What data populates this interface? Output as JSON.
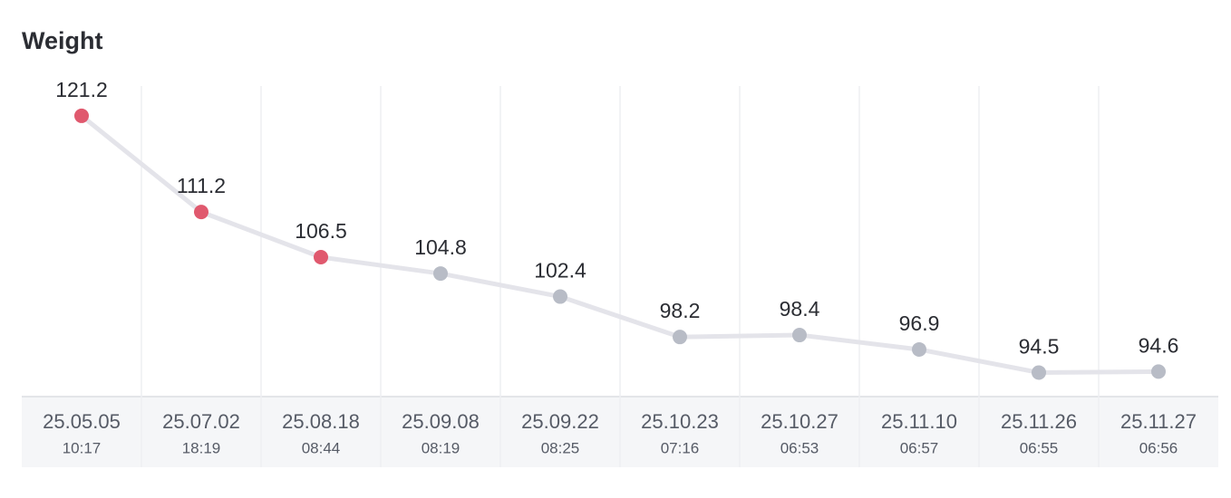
{
  "chart_data": {
    "type": "line",
    "title": "Weight",
    "categories": [
      "25.05.05",
      "25.07.02",
      "25.08.18",
      "25.09.08",
      "25.09.22",
      "25.10.23",
      "25.10.27",
      "25.11.10",
      "25.11.26",
      "25.11.27"
    ],
    "times": [
      "10:17",
      "18:19",
      "08:44",
      "08:19",
      "08:25",
      "07:16",
      "06:53",
      "06:57",
      "06:55",
      "06:56"
    ],
    "values": [
      121.2,
      111.2,
      106.5,
      104.8,
      102.4,
      98.2,
      98.4,
      96.9,
      94.5,
      94.6
    ],
    "line_color": "#e4e4ea",
    "marker_colors": [
      "#e0596e",
      "#e0596e",
      "#e0596e",
      "#b8bcc6",
      "#b8bcc6",
      "#b8bcc6",
      "#b8bcc6",
      "#b8bcc6",
      "#b8bcc6",
      "#b8bcc6"
    ],
    "ylim": [
      92,
      124.3
    ],
    "grid": true
  }
}
